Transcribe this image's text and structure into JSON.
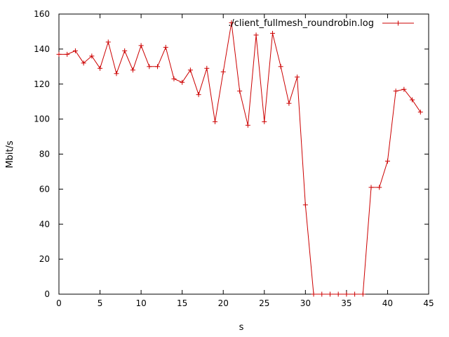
{
  "chart_data": {
    "type": "line",
    "title": "",
    "xlabel": "s",
    "ylabel": "Mbit/s",
    "xlim": [
      0,
      45
    ],
    "ylim": [
      0,
      160
    ],
    "xticks": [
      0,
      5,
      10,
      15,
      20,
      25,
      30,
      35,
      40,
      45
    ],
    "yticks": [
      0,
      20,
      40,
      60,
      80,
      100,
      120,
      140,
      160
    ],
    "grid": false,
    "legend_position": "top-right",
    "series": [
      {
        "name": "./client_fullmesh_roundrobin.log",
        "color": "#cc0000",
        "marker": "plus",
        "x": [
          0,
          1,
          2,
          3,
          4,
          5,
          6,
          7,
          8,
          9,
          10,
          11,
          12,
          13,
          14,
          15,
          16,
          17,
          18,
          19,
          20,
          21,
          22,
          23,
          24,
          25,
          26,
          27,
          28,
          29,
          30,
          31,
          32,
          33,
          34,
          35,
          36,
          37,
          38,
          39,
          40,
          41,
          42,
          43,
          44
        ],
        "y": [
          137,
          137,
          139,
          132,
          136,
          129,
          144,
          126,
          139,
          128,
          142,
          130,
          130,
          141,
          123,
          121,
          128,
          114,
          129,
          98.5,
          127,
          155,
          116,
          96.5,
          148,
          98.5,
          149,
          130,
          109,
          124,
          51,
          0,
          0,
          0,
          0,
          0,
          0,
          0,
          61,
          61,
          76,
          116,
          117,
          111,
          104
        ]
      }
    ]
  }
}
